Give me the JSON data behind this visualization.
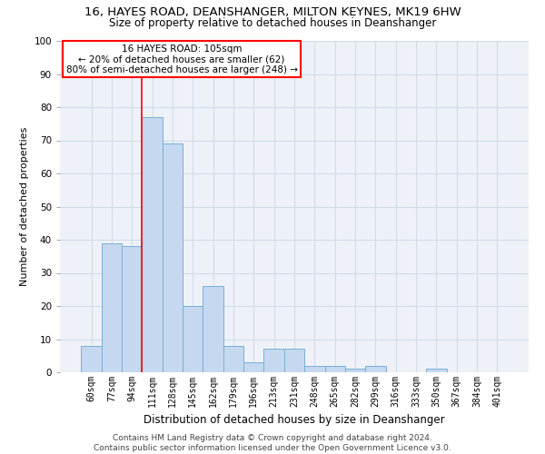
{
  "title_line1": "16, HAYES ROAD, DEANSHANGER, MILTON KEYNES, MK19 6HW",
  "title_line2": "Size of property relative to detached houses in Deanshanger",
  "xlabel": "Distribution of detached houses by size in Deanshanger",
  "ylabel": "Number of detached properties",
  "categories": [
    "60sqm",
    "77sqm",
    "94sqm",
    "111sqm",
    "128sqm",
    "145sqm",
    "162sqm",
    "179sqm",
    "196sqm",
    "213sqm",
    "231sqm",
    "248sqm",
    "265sqm",
    "282sqm",
    "299sqm",
    "316sqm",
    "333sqm",
    "350sqm",
    "367sqm",
    "384sqm",
    "401sqm"
  ],
  "values": [
    8,
    39,
    38,
    77,
    69,
    20,
    26,
    8,
    3,
    7,
    7,
    2,
    2,
    1,
    2,
    0,
    0,
    1,
    0,
    0,
    0
  ],
  "bar_color": "#c5d8f0",
  "bar_edge_color": "#7aaed6",
  "grid_color": "#d0dcea",
  "background_color": "#eef2f8",
  "vline_color": "red",
  "vline_x": 2.5,
  "annotation_title": "16 HAYES ROAD: 105sqm",
  "annotation_line2": "← 20% of detached houses are smaller (62)",
  "annotation_line3": "80% of semi-detached houses are larger (248) →",
  "annotation_box_color": "white",
  "annotation_box_edge": "red",
  "footer_line1": "Contains HM Land Registry data © Crown copyright and database right 2024.",
  "footer_line2": "Contains public sector information licensed under the Open Government Licence v3.0.",
  "ylim": [
    0,
    100
  ],
  "title_fontsize": 9.5,
  "subtitle_fontsize": 8.5,
  "ylabel_fontsize": 8,
  "xlabel_fontsize": 8.5,
  "tick_fontsize": 7,
  "annotation_fontsize": 7.5,
  "footer_fontsize": 6.5
}
